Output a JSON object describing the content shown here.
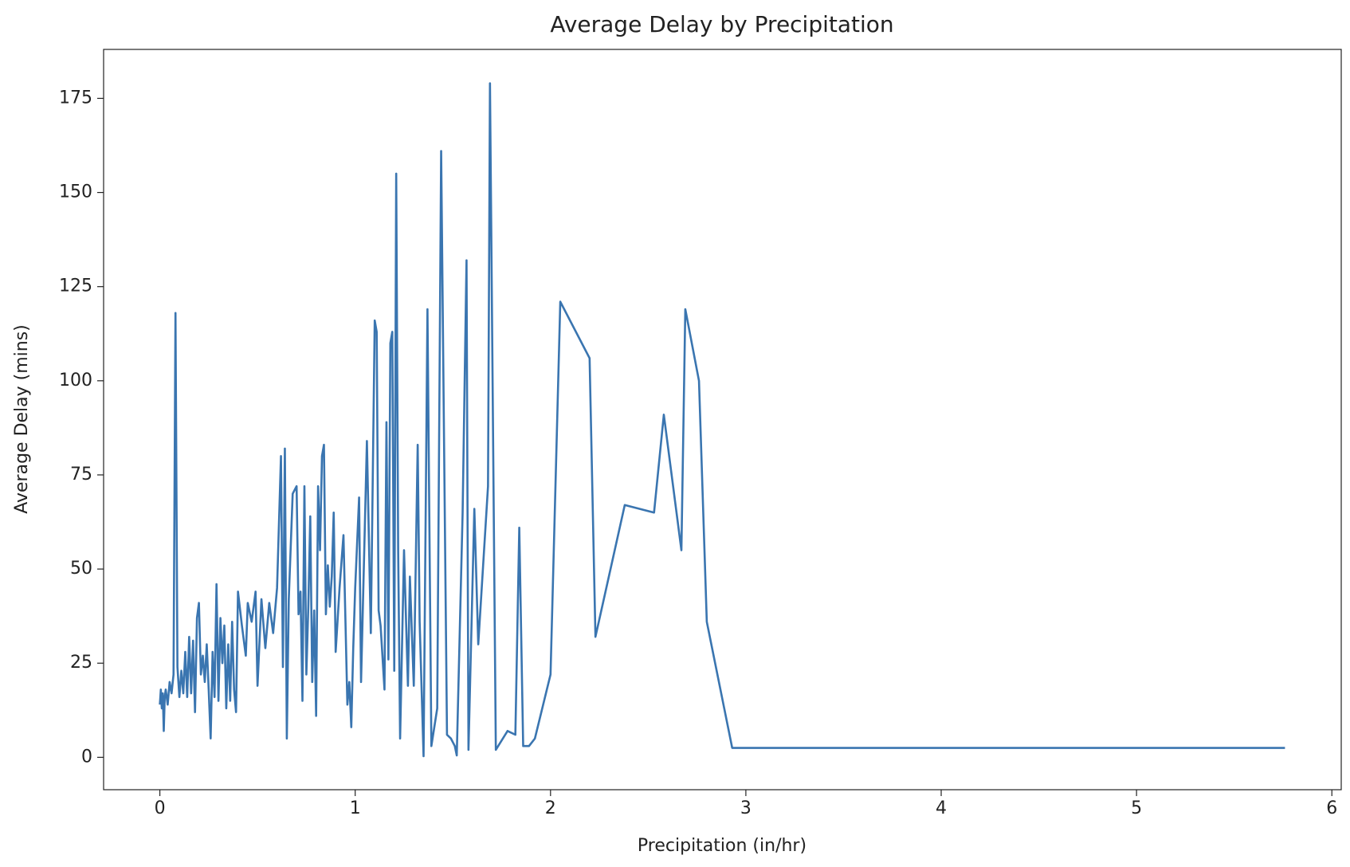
{
  "chart_data": {
    "type": "line",
    "title": "Average Delay by Precipitation",
    "x_label": "Precipitation (in/hr)",
    "y_label": "Average Delay (mins)",
    "x": [
      0.0,
      0.005,
      0.01,
      0.015,
      0.02,
      0.025,
      0.03,
      0.04,
      0.05,
      0.06,
      0.07,
      0.08,
      0.09,
      0.1,
      0.11,
      0.12,
      0.13,
      0.14,
      0.15,
      0.16,
      0.17,
      0.18,
      0.19,
      0.2,
      0.21,
      0.22,
      0.23,
      0.24,
      0.25,
      0.26,
      0.27,
      0.28,
      0.29,
      0.3,
      0.31,
      0.32,
      0.33,
      0.34,
      0.35,
      0.36,
      0.37,
      0.38,
      0.39,
      0.4,
      0.42,
      0.44,
      0.45,
      0.47,
      0.49,
      0.5,
      0.52,
      0.54,
      0.56,
      0.58,
      0.6,
      0.62,
      0.63,
      0.64,
      0.65,
      0.66,
      0.68,
      0.7,
      0.71,
      0.72,
      0.73,
      0.74,
      0.75,
      0.76,
      0.77,
      0.78,
      0.79,
      0.8,
      0.81,
      0.82,
      0.83,
      0.84,
      0.85,
      0.86,
      0.87,
      0.88,
      0.89,
      0.9,
      0.92,
      0.94,
      0.96,
      0.97,
      0.98,
      0.99,
      1.0,
      1.02,
      1.03,
      1.06,
      1.08,
      1.1,
      1.11,
      1.12,
      1.13,
      1.15,
      1.16,
      1.17,
      1.18,
      1.19,
      1.2,
      1.21,
      1.22,
      1.23,
      1.25,
      1.27,
      1.28,
      1.3,
      1.32,
      1.33,
      1.35,
      1.37,
      1.39,
      1.42,
      1.44,
      1.47,
      1.49,
      1.51,
      1.52,
      1.55,
      1.57,
      1.58,
      1.61,
      1.63,
      1.68,
      1.69,
      1.72,
      1.78,
      1.82,
      1.84,
      1.86,
      1.89,
      1.92,
      2.0,
      2.05,
      2.2,
      2.23,
      2.38,
      2.53,
      2.58,
      2.67,
      2.69,
      2.76,
      2.8,
      2.93,
      5.76
    ],
    "series": [
      {
        "name": "Average Delay",
        "color": "#3a75b0",
        "values": [
          14,
          18,
          13,
          17,
          7,
          16,
          18,
          14,
          20,
          17,
          22,
          118,
          24,
          16,
          23,
          17,
          28,
          16,
          32,
          17,
          31,
          12,
          37,
          41,
          22,
          27,
          20,
          30,
          18,
          5,
          28,
          16,
          46,
          15,
          37,
          25,
          35,
          13,
          30,
          15,
          36,
          18,
          12,
          44,
          35,
          27,
          41,
          36,
          44,
          19,
          42,
          29,
          41,
          33,
          45,
          80,
          24,
          82,
          5,
          42,
          70,
          72,
          38,
          44,
          15,
          72,
          22,
          40,
          64,
          20,
          39,
          11,
          72,
          55,
          80,
          83,
          38,
          51,
          40,
          48,
          65,
          28,
          45,
          59,
          14,
          20,
          8,
          29,
          45,
          69,
          20,
          84,
          33,
          116,
          113,
          39,
          35,
          18,
          89,
          26,
          110,
          113,
          23,
          155,
          55,
          5,
          55,
          19,
          48,
          19,
          83,
          36,
          0.3,
          119,
          3,
          13,
          161,
          6,
          5,
          3,
          0.5,
          65,
          132,
          2,
          66,
          30,
          72,
          179,
          2,
          7,
          6,
          61,
          3,
          3,
          5,
          22,
          121,
          106,
          32,
          67,
          65,
          91,
          55,
          119,
          100,
          36,
          2.5,
          2.5
        ]
      }
    ],
    "xlim": [
      -0.288,
      6.048
    ],
    "ylim": [
      -8.6,
      188.0
    ],
    "xticks": [
      0,
      1,
      2,
      3,
      4,
      5,
      6
    ],
    "yticks": [
      0,
      25,
      50,
      75,
      100,
      125,
      150,
      175
    ]
  }
}
